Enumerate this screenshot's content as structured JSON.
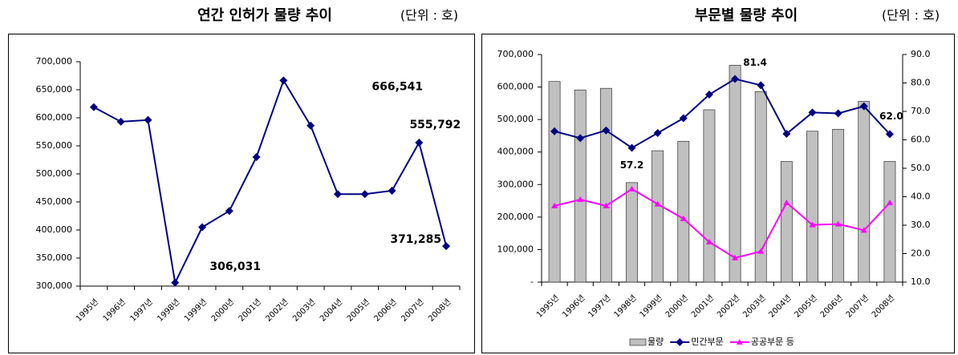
{
  "chart_data": [
    {
      "type": "line",
      "title": "연간 인허가 물량 추이",
      "subtitle": "(단위 : 호)",
      "categories": [
        "1995년",
        "1996년",
        "1997년",
        "1998년",
        "1999년",
        "2000년",
        "2001년",
        "2002년",
        "2003년",
        "2004년",
        "2005년",
        "2006년",
        "2007년",
        "2008년"
      ],
      "values": [
        619000,
        593000,
        596000,
        306031,
        405000,
        434000,
        530000,
        666541,
        586000,
        464000,
        464000,
        470000,
        555792,
        371285
      ],
      "value_labels": [
        null,
        null,
        null,
        "306,031",
        null,
        null,
        null,
        "666,541",
        null,
        null,
        null,
        null,
        "555,792",
        "371,285"
      ],
      "color": "#000080",
      "ylim": [
        300000,
        700000
      ],
      "yticks": [
        {
          "value": 300000,
          "label": "300,000"
        },
        {
          "value": 350000,
          "label": "350,000"
        },
        {
          "value": 400000,
          "label": "400,000"
        },
        {
          "value": 450000,
          "label": "450,000"
        },
        {
          "value": 500000,
          "label": "500,000"
        },
        {
          "value": 550000,
          "label": "550,000"
        },
        {
          "value": 600000,
          "label": "600,000"
        },
        {
          "value": 650000,
          "label": "650,000"
        },
        {
          "value": 700000,
          "label": "700,000"
        }
      ],
      "grid": false
    },
    {
      "type": "combo",
      "title": "부문별 물량 추이",
      "subtitle": "(단위 : 호)",
      "categories": [
        "1995년",
        "1996년",
        "1997년",
        "1998년",
        "1999년",
        "2000년",
        "2001년",
        "2002년",
        "2003년",
        "2004년",
        "2005년",
        "2006년",
        "2007년",
        "2008년"
      ],
      "series": [
        {
          "name": "물량",
          "type": "bar",
          "color": "#c0c0c0",
          "values": [
            617000,
            591000,
            596000,
            306000,
            404000,
            433000,
            530000,
            667000,
            586000,
            371000,
            464000,
            470000,
            556000,
            371000
          ]
        },
        {
          "name": "민간부문",
          "type": "line",
          "axis": "y2",
          "color": "#000080",
          "values": [
            63.0,
            60.6,
            63.3,
            57.2,
            62.4,
            67.6,
            75.9,
            81.4,
            79.2,
            62.1,
            69.6,
            69.3,
            71.8,
            62.0
          ],
          "value_labels": [
            null,
            null,
            null,
            "57.2",
            null,
            null,
            null,
            "81.4",
            null,
            null,
            null,
            null,
            null,
            "62.0"
          ]
        },
        {
          "name": "공공부문 등",
          "type": "line",
          "axis": "y2",
          "color": "#ff00ff",
          "values": [
            36.8,
            39.0,
            36.8,
            42.7,
            37.4,
            32.3,
            24.1,
            18.5,
            20.8,
            37.9,
            30.1,
            30.4,
            28.2,
            37.9
          ]
        }
      ],
      "ylim": [
        0,
        700000
      ],
      "yticks": [
        {
          "value": 0,
          "label": "-"
        },
        {
          "value": 100000,
          "label": "100,000"
        },
        {
          "value": 200000,
          "label": "200,000"
        },
        {
          "value": 300000,
          "label": "300,000"
        },
        {
          "value": 400000,
          "label": "400,000"
        },
        {
          "value": 500000,
          "label": "500,000"
        },
        {
          "value": 600000,
          "label": "600,000"
        },
        {
          "value": 700000,
          "label": "700,000"
        }
      ],
      "y2lim": [
        10,
        90
      ],
      "y2ticks": [
        {
          "value": 10,
          "label": "10.0"
        },
        {
          "value": 20,
          "label": "20.0"
        },
        {
          "value": 30,
          "label": "30.0"
        },
        {
          "value": 40,
          "label": "40.0"
        },
        {
          "value": 50,
          "label": "50.0"
        },
        {
          "value": 60,
          "label": "60.0"
        },
        {
          "value": 70,
          "label": "70.0"
        },
        {
          "value": 80,
          "label": "80.0"
        },
        {
          "value": 90,
          "label": "90.0"
        }
      ],
      "legend": "bottom",
      "grid": false
    }
  ]
}
